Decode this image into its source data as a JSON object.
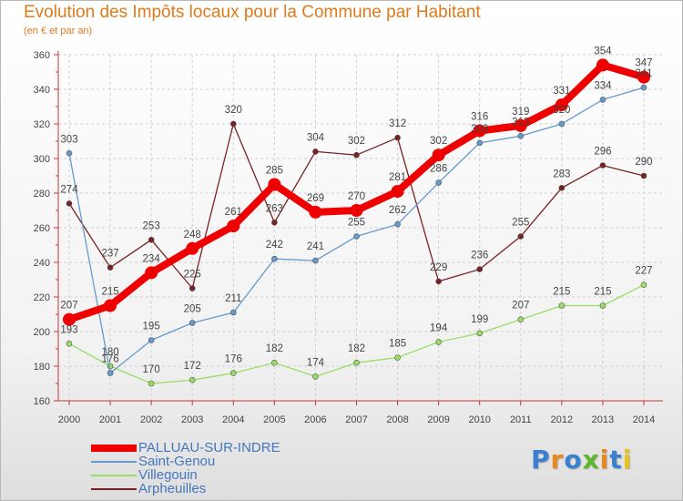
{
  "title": "Evolution des Impôts locaux pour la Commune par Habitant",
  "subtitle": "(en € et par an)",
  "logo_text": "Proxiti",
  "logo_colors": [
    "#3a7fd0",
    "#e88a1a",
    "#3a7fd0",
    "#5cb82a",
    "#e88a1a",
    "#3a7fd0",
    "#e8c31a"
  ],
  "chart_data": {
    "type": "line",
    "title": "Evolution des Impôts locaux pour la Commune par Habitant",
    "subtitle": "(en € et par an)",
    "x": [
      "2000",
      "2001",
      "2002",
      "2003",
      "2004",
      "2005",
      "2006",
      "2007",
      "2008",
      "2009",
      "2010",
      "2011",
      "2012",
      "2013",
      "2014"
    ],
    "ylim": [
      160,
      360
    ],
    "yticks": [
      160,
      180,
      200,
      220,
      240,
      260,
      280,
      300,
      320,
      340,
      360
    ],
    "grid": true,
    "legend_position": "bottom-left",
    "series": [
      {
        "name": "PALLUAU-SUR-INDRE",
        "color": "#ee0000",
        "values": [
          207,
          215,
          234,
          248,
          261,
          285,
          269,
          270,
          281,
          302,
          316,
          319,
          331,
          354,
          347
        ]
      },
      {
        "name": "Saint-Genou",
        "color": "#6699cc",
        "values": [
          303,
          176,
          195,
          205,
          211,
          242,
          241,
          255,
          262,
          286,
          309,
          313,
          320,
          334,
          341
        ]
      },
      {
        "name": "Villegouin",
        "color": "#99dd66",
        "values": [
          193,
          180,
          170,
          172,
          176,
          182,
          174,
          182,
          185,
          194,
          199,
          207,
          215,
          215,
          227
        ]
      },
      {
        "name": "Arpheuilles",
        "color": "#772222",
        "values": [
          274,
          237,
          253,
          225,
          320,
          263,
          304,
          302,
          312,
          229,
          236,
          255,
          283,
          296,
          290
        ]
      }
    ]
  }
}
